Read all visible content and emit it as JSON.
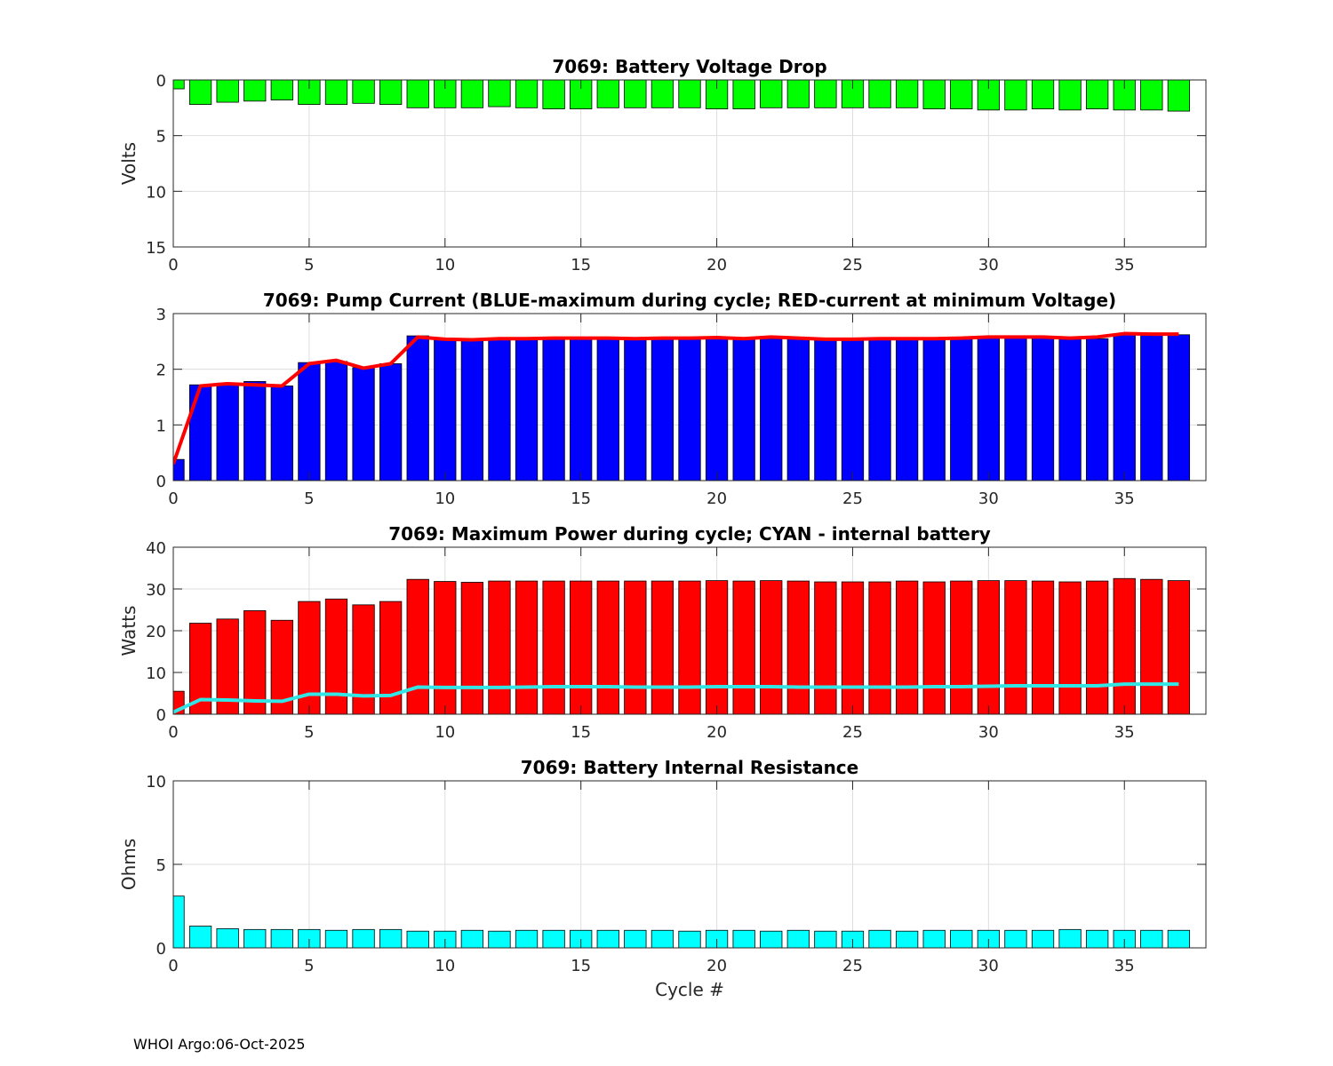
{
  "footer": "WHOI Argo:06-Oct-2025",
  "chart_data": [
    {
      "type": "bar",
      "title": "7069: Battery Voltage Drop",
      "xlabel": "",
      "ylabel": "Volts",
      "x": [
        0,
        1,
        2,
        3,
        4,
        5,
        6,
        7,
        8,
        9,
        10,
        11,
        12,
        13,
        14,
        15,
        16,
        17,
        18,
        19,
        20,
        21,
        22,
        23,
        24,
        25,
        26,
        27,
        28,
        29,
        30,
        31,
        32,
        33,
        34,
        35,
        36,
        37
      ],
      "values": [
        0.8,
        2.2,
        2.0,
        1.9,
        1.8,
        2.2,
        2.2,
        2.1,
        2.2,
        2.5,
        2.5,
        2.5,
        2.4,
        2.5,
        2.6,
        2.6,
        2.5,
        2.5,
        2.5,
        2.5,
        2.6,
        2.6,
        2.5,
        2.5,
        2.5,
        2.5,
        2.5,
        2.5,
        2.6,
        2.6,
        2.7,
        2.7,
        2.6,
        2.7,
        2.6,
        2.7,
        2.7,
        2.8
      ],
      "bar_color": "#00ff00",
      "ylim": [
        0,
        15
      ],
      "y_reversed": true,
      "xlim": [
        0,
        38
      ],
      "yticks": [
        0,
        5,
        10,
        15
      ],
      "yticklabels": [
        "0",
        "5",
        "10",
        "15"
      ],
      "xticks": [
        0,
        5,
        10,
        15,
        20,
        25,
        30,
        35
      ],
      "xticklabels": [
        "0",
        "5",
        "10",
        "15",
        "20",
        "25",
        "30",
        "35"
      ],
      "grid": true
    },
    {
      "type": "bar",
      "title": "7069: Pump Current (BLUE-maximum during cycle; RED-current at minimum Voltage)",
      "xlabel": "",
      "ylabel": "",
      "x": [
        0,
        1,
        2,
        3,
        4,
        5,
        6,
        7,
        8,
        9,
        10,
        11,
        12,
        13,
        14,
        15,
        16,
        17,
        18,
        19,
        20,
        21,
        22,
        23,
        24,
        25,
        26,
        27,
        28,
        29,
        30,
        31,
        32,
        33,
        34,
        35,
        36,
        37
      ],
      "values": [
        0.38,
        1.72,
        1.75,
        1.78,
        1.7,
        2.12,
        2.14,
        2.03,
        2.1,
        2.6,
        2.55,
        2.52,
        2.55,
        2.55,
        2.55,
        2.55,
        2.55,
        2.55,
        2.55,
        2.55,
        2.55,
        2.55,
        2.55,
        2.55,
        2.55,
        2.55,
        2.55,
        2.55,
        2.55,
        2.55,
        2.58,
        2.58,
        2.58,
        2.55,
        2.55,
        2.62,
        2.62,
        2.62
      ],
      "bar_color": "#0000ff",
      "series": [
        {
          "name": "RED-current at minimum Voltage",
          "color": "#ff0000",
          "values": [
            0.3,
            1.7,
            1.74,
            1.72,
            1.7,
            2.1,
            2.16,
            2.02,
            2.1,
            2.58,
            2.54,
            2.53,
            2.55,
            2.55,
            2.56,
            2.56,
            2.56,
            2.55,
            2.56,
            2.56,
            2.57,
            2.55,
            2.58,
            2.56,
            2.54,
            2.54,
            2.55,
            2.55,
            2.55,
            2.56,
            2.58,
            2.58,
            2.58,
            2.56,
            2.58,
            2.64,
            2.63,
            2.63
          ]
        }
      ],
      "ylim": [
        0,
        3
      ],
      "y_reversed": false,
      "xlim": [
        0,
        38
      ],
      "yticks": [
        0,
        1,
        2,
        3
      ],
      "yticklabels": [
        "0",
        "1",
        "2",
        "3"
      ],
      "xticks": [
        0,
        5,
        10,
        15,
        20,
        25,
        30,
        35
      ],
      "xticklabels": [
        "0",
        "5",
        "10",
        "15",
        "20",
        "25",
        "30",
        "35"
      ],
      "grid": true
    },
    {
      "type": "bar",
      "title": "7069: Maximum Power during cycle; CYAN - internal battery",
      "xlabel": "",
      "ylabel": "Watts",
      "x": [
        0,
        1,
        2,
        3,
        4,
        5,
        6,
        7,
        8,
        9,
        10,
        11,
        12,
        13,
        14,
        15,
        16,
        17,
        18,
        19,
        20,
        21,
        22,
        23,
        24,
        25,
        26,
        27,
        28,
        29,
        30,
        31,
        32,
        33,
        34,
        35,
        36,
        37
      ],
      "values": [
        5.5,
        21.8,
        22.8,
        24.8,
        22.5,
        27.0,
        27.6,
        26.2,
        27.0,
        32.3,
        31.8,
        31.6,
        31.9,
        31.9,
        31.9,
        31.9,
        31.9,
        31.9,
        31.9,
        31.9,
        32.0,
        31.9,
        32.0,
        31.9,
        31.7,
        31.7,
        31.7,
        31.9,
        31.7,
        31.9,
        32.0,
        32.0,
        31.9,
        31.7,
        31.9,
        32.5,
        32.3,
        32.0
      ],
      "bar_color": "#ff0000",
      "series": [
        {
          "name": "CYAN - internal battery",
          "color": "#33e6e6",
          "values": [
            0.5,
            3.5,
            3.4,
            3.2,
            3.1,
            4.8,
            4.8,
            4.4,
            4.5,
            6.5,
            6.4,
            6.4,
            6.4,
            6.5,
            6.6,
            6.6,
            6.6,
            6.5,
            6.5,
            6.5,
            6.6,
            6.6,
            6.6,
            6.5,
            6.5,
            6.5,
            6.5,
            6.5,
            6.6,
            6.6,
            6.7,
            6.8,
            6.8,
            6.8,
            6.8,
            7.2,
            7.2,
            7.2
          ]
        }
      ],
      "ylim": [
        0,
        40
      ],
      "y_reversed": false,
      "xlim": [
        0,
        38
      ],
      "yticks": [
        0,
        10,
        20,
        30,
        40
      ],
      "yticklabels": [
        "0",
        "10",
        "20",
        "30",
        "40"
      ],
      "xticks": [
        0,
        5,
        10,
        15,
        20,
        25,
        30,
        35
      ],
      "xticklabels": [
        "0",
        "5",
        "10",
        "15",
        "20",
        "25",
        "30",
        "35"
      ],
      "grid": true
    },
    {
      "type": "bar",
      "title": "7069: Battery Internal Resistance",
      "xlabel": "Cycle #",
      "ylabel": "Ohms",
      "x": [
        0,
        1,
        2,
        3,
        4,
        5,
        6,
        7,
        8,
        9,
        10,
        11,
        12,
        13,
        14,
        15,
        16,
        17,
        18,
        19,
        20,
        21,
        22,
        23,
        24,
        25,
        26,
        27,
        28,
        29,
        30,
        31,
        32,
        33,
        34,
        35,
        36,
        37
      ],
      "values": [
        3.1,
        1.3,
        1.15,
        1.1,
        1.1,
        1.1,
        1.05,
        1.1,
        1.1,
        1.0,
        1.0,
        1.05,
        1.0,
        1.05,
        1.05,
        1.05,
        1.05,
        1.05,
        1.05,
        1.0,
        1.05,
        1.05,
        1.0,
        1.05,
        1.0,
        1.0,
        1.05,
        1.0,
        1.05,
        1.05,
        1.05,
        1.05,
        1.05,
        1.1,
        1.05,
        1.05,
        1.05,
        1.05
      ],
      "bar_color": "#00ffff",
      "ylim": [
        0,
        10
      ],
      "y_reversed": false,
      "xlim": [
        0,
        38
      ],
      "yticks": [
        0,
        5,
        10
      ],
      "yticklabels": [
        "0",
        "5",
        "10"
      ],
      "xticks": [
        0,
        5,
        10,
        15,
        20,
        25,
        30,
        35
      ],
      "xticklabels": [
        "0",
        "5",
        "10",
        "15",
        "20",
        "25",
        "30",
        "35"
      ],
      "grid": true
    }
  ]
}
